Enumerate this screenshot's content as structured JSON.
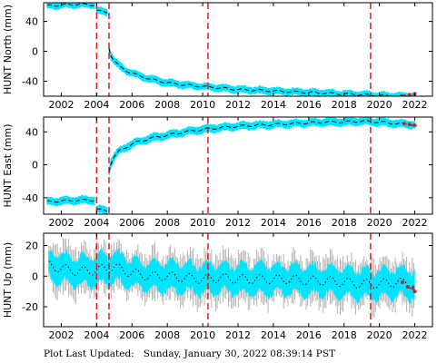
{
  "footer": {
    "label": "Plot Last Updated:",
    "timestamp": "Sunday, January 30, 2022 08:39:14 PST"
  },
  "colors": {
    "model_fill": "#00e5ff",
    "error_bar": "#b4b4b4",
    "data_line": "#000000",
    "event_line": "#e41a1c",
    "recent_points": "#e41a1c"
  },
  "chart_data": [
    {
      "type": "line",
      "ylabel": "HUNT North (mm)",
      "xlim": [
        2001.0,
        2023.0
      ],
      "ylim": [
        -60,
        65
      ],
      "xticks": [
        2002,
        2004,
        2006,
        2008,
        2010,
        2012,
        2014,
        2016,
        2018,
        2020,
        2022
      ],
      "yticks": [
        -40,
        0,
        40
      ],
      "band_halfwidth": 4,
      "event_dates": [
        2004.0,
        2004.7,
        2010.3,
        2019.5
      ],
      "series": [
        {
          "x": [
            2001.2,
            2002.0,
            2003.0,
            2003.9
          ],
          "y": [
            61,
            62,
            63,
            62
          ]
        },
        {
          "x": [
            2004.0,
            2004.3,
            2004.6
          ],
          "y": [
            55,
            53,
            52
          ]
        },
        {
          "x": [
            2004.7,
            2004.8,
            2005.0,
            2005.3,
            2005.7,
            2006.2,
            2007.0,
            2008.0,
            2009.0,
            2010.0,
            2011.0,
            2012.0,
            2013.0,
            2014.0,
            2015.0,
            2016.0,
            2017.0,
            2018.0,
            2019.0,
            2020.0,
            2021.0,
            2022.0
          ],
          "y": [
            5,
            -5,
            -13,
            -20,
            -26,
            -31,
            -37,
            -42,
            -45,
            -47,
            -49,
            -51,
            -52,
            -53,
            -54,
            -55,
            -56,
            -57,
            -58,
            -59,
            -60,
            -60
          ]
        }
      ],
      "recent_points": {
        "x": [
          2021.4,
          2021.7,
          2022.0
        ],
        "y": [
          -60,
          -58,
          -57
        ]
      }
    },
    {
      "type": "line",
      "ylabel": "HUNT East (mm)",
      "xlim": [
        2001.0,
        2023.0
      ],
      "ylim": [
        -60,
        58
      ],
      "xticks": [
        2002,
        2004,
        2006,
        2008,
        2010,
        2012,
        2014,
        2016,
        2018,
        2020,
        2022
      ],
      "yticks": [
        -40,
        0,
        40
      ],
      "band_halfwidth": 4,
      "event_dates": [
        2004.0,
        2004.7,
        2010.3,
        2019.5
      ],
      "series": [
        {
          "x": [
            2001.2,
            2002.0,
            2003.0,
            2003.9
          ],
          "y": [
            -45,
            -44,
            -43,
            -43
          ]
        },
        {
          "x": [
            2004.0,
            2004.3,
            2004.6
          ],
          "y": [
            -54,
            -55,
            -56
          ]
        },
        {
          "x": [
            2004.7,
            2004.8,
            2005.0,
            2005.3,
            2005.7,
            2006.2,
            2007.0,
            2008.0,
            2009.0,
            2010.0,
            2011.0,
            2012.0,
            2013.0,
            2014.0,
            2015.0,
            2016.0,
            2017.0,
            2018.0,
            2019.0,
            2020.0,
            2021.0,
            2022.0
          ],
          "y": [
            -8,
            2,
            10,
            17,
            22,
            27,
            32,
            36,
            40,
            43,
            45,
            47,
            48,
            49,
            50,
            51,
            52,
            52,
            53,
            52,
            50,
            49
          ]
        }
      ],
      "recent_points": {
        "x": [
          2021.4,
          2021.7,
          2022.0
        ],
        "y": [
          50,
          49,
          48
        ]
      }
    },
    {
      "type": "line",
      "ylabel": "HUNT Up (mm)",
      "xlim": [
        2001.0,
        2023.0
      ],
      "ylim": [
        -33,
        28
      ],
      "xticks": [
        2002,
        2004,
        2006,
        2008,
        2010,
        2012,
        2014,
        2016,
        2018,
        2020,
        2022
      ],
      "yticks": [
        -20,
        0,
        20
      ],
      "band_halfwidth": 8,
      "error_halfwidth": 16,
      "event_dates": [
        2004.0,
        2004.7,
        2010.3,
        2019.5
      ],
      "series": [
        {
          "x": [
            2001.3,
            2002.0,
            2003.0,
            2004.0,
            2005.0,
            2006.0,
            2007.0,
            2008.0,
            2009.0,
            2010.0,
            2011.0,
            2012.0,
            2013.0,
            2014.0,
            2015.0,
            2016.0,
            2017.0,
            2018.0,
            2019.0,
            2020.0,
            2021.0,
            2022.0
          ],
          "y": [
            7,
            5,
            3,
            4,
            6,
            2,
            0,
            0,
            -1,
            -2,
            -1,
            -2,
            -2,
            -2,
            -2,
            -3,
            -3,
            -4,
            -5,
            -5,
            -4,
            -5
          ]
        }
      ],
      "recent_points": {
        "x": [
          2021.3,
          2021.6,
          2021.9,
          2022.0
        ],
        "y": [
          -4,
          -7,
          -8,
          -10
        ]
      }
    }
  ]
}
